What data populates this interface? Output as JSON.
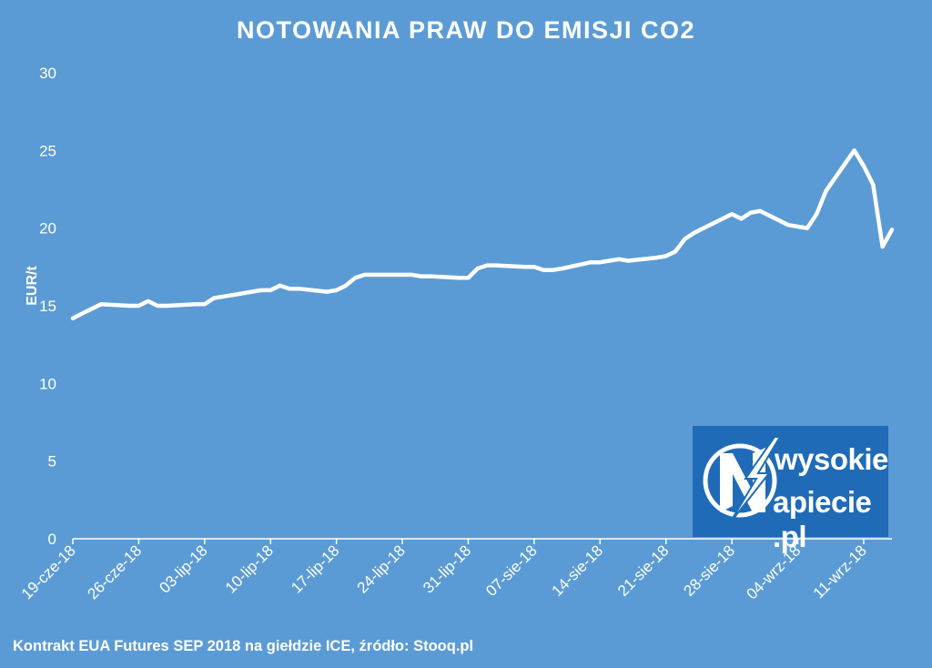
{
  "chart_data": {
    "type": "line",
    "title": "NOTOWANIA PRAW DO EMISJI CO2",
    "ylabel": "EUR/t",
    "xlabel": "",
    "ylim": [
      0,
      30
    ],
    "yticks": [
      0,
      5,
      10,
      15,
      20,
      25,
      30
    ],
    "xticks": [
      "19-cze-18",
      "26-cze-18",
      "03-lip-18",
      "10-lip-18",
      "17-lip-18",
      "24-lip-18",
      "31-lip-18",
      "07-sie-18",
      "14-sie-18",
      "21-sie-18",
      "28-sie-18",
      "04-wrz-18",
      "11-wrz-18"
    ],
    "grid": false,
    "series": [
      {
        "x": [
          "19-cze-18",
          "20-cze-18",
          "21-cze-18",
          "22-cze-18",
          "25-cze-18",
          "26-cze-18",
          "27-cze-18",
          "28-cze-18",
          "29-cze-18",
          "02-lip-18",
          "03-lip-18",
          "04-lip-18",
          "05-lip-18",
          "06-lip-18",
          "09-lip-18",
          "10-lip-18",
          "11-lip-18",
          "12-lip-18",
          "13-lip-18",
          "16-lip-18",
          "17-lip-18",
          "18-lip-18",
          "19-lip-18",
          "20-lip-18",
          "23-lip-18",
          "24-lip-18",
          "25-lip-18",
          "26-lip-18",
          "27-lip-18",
          "30-lip-18",
          "31-lip-18",
          "01-sie-18",
          "02-sie-18",
          "03-sie-18",
          "06-sie-18",
          "07-sie-18",
          "08-sie-18",
          "09-sie-18",
          "10-sie-18",
          "13-sie-18",
          "14-sie-18",
          "15-sie-18",
          "16-sie-18",
          "17-sie-18",
          "20-sie-18",
          "21-sie-18",
          "22-sie-18",
          "23-sie-18",
          "24-sie-18",
          "27-sie-18",
          "28-sie-18",
          "29-sie-18",
          "30-sie-18",
          "31-sie-18",
          "03-wrz-18",
          "04-wrz-18",
          "05-wrz-18",
          "06-wrz-18",
          "07-wrz-18",
          "10-wrz-18",
          "11-wrz-18",
          "12-wrz-18",
          "13-wrz-18",
          "14-wrz-18"
        ],
        "values": [
          14.2,
          14.5,
          14.8,
          15.1,
          15.0,
          15.0,
          15.3,
          15.0,
          15.0,
          15.1,
          15.1,
          15.5,
          15.6,
          15.7,
          16.0,
          16.0,
          16.3,
          16.1,
          16.1,
          15.9,
          16.0,
          16.3,
          16.8,
          17.0,
          17.0,
          17.0,
          17.0,
          16.9,
          16.9,
          16.8,
          16.8,
          17.4,
          17.6,
          17.6,
          17.5,
          17.5,
          17.3,
          17.3,
          17.4,
          17.8,
          17.8,
          17.9,
          18.0,
          17.9,
          18.1,
          18.2,
          18.5,
          19.3,
          19.7,
          20.6,
          20.9,
          20.6,
          21.0,
          21.1,
          20.2,
          20.1,
          20.0,
          20.9,
          22.4,
          25.0,
          24.0,
          22.8,
          18.8,
          19.9
        ]
      }
    ]
  },
  "source_note": "Kontrakt EUA Futures SEP 2018 na giełdzie ICE, źródło: Stooq.pl",
  "logo": {
    "line1": "wysokie",
    "line2": "apiecie .pl"
  }
}
